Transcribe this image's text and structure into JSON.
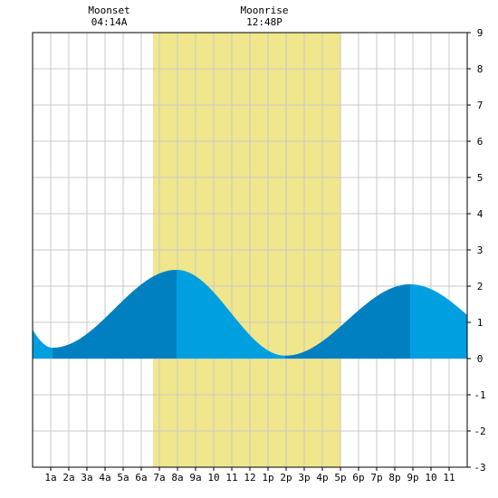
{
  "chart_data": {
    "type": "area",
    "x_unit": "hour",
    "x_range": [
      0,
      24
    ],
    "ylim": [
      -3,
      9
    ],
    "yticks": [
      -3,
      -2,
      -1,
      0,
      1,
      2,
      3,
      4,
      5,
      6,
      7,
      8,
      9
    ],
    "xticks": [
      {
        "h": 1,
        "label": "1a"
      },
      {
        "h": 2,
        "label": "2a"
      },
      {
        "h": 3,
        "label": "3a"
      },
      {
        "h": 4,
        "label": "4a"
      },
      {
        "h": 5,
        "label": "5a"
      },
      {
        "h": 6,
        "label": "6a"
      },
      {
        "h": 7,
        "label": "7a"
      },
      {
        "h": 8,
        "label": "8a"
      },
      {
        "h": 9,
        "label": "9a"
      },
      {
        "h": 10,
        "label": "10"
      },
      {
        "h": 11,
        "label": "11"
      },
      {
        "h": 12,
        "label": "12"
      },
      {
        "h": 13,
        "label": "1p"
      },
      {
        "h": 14,
        "label": "2p"
      },
      {
        "h": 15,
        "label": "3p"
      },
      {
        "h": 16,
        "label": "4p"
      },
      {
        "h": 17,
        "label": "5p"
      },
      {
        "h": 18,
        "label": "6p"
      },
      {
        "h": 19,
        "label": "7p"
      },
      {
        "h": 20,
        "label": "8p"
      },
      {
        "h": 21,
        "label": "9p"
      },
      {
        "h": 22,
        "label": "10"
      },
      {
        "h": 23,
        "label": "11"
      }
    ],
    "daylight": {
      "start_hour": 6.65,
      "end_hour": 17.03
    },
    "annotations": [
      {
        "title": "Moonset",
        "time": "04:14A",
        "hour": 4.23
      },
      {
        "title": "Moonrise",
        "time": "12:48P",
        "hour": 12.8
      }
    ],
    "tide_extremes": [
      {
        "hour": -2.2,
        "height": 2.3
      },
      {
        "hour": 1.1,
        "height": 0.3
      },
      {
        "hour": 7.95,
        "height": 2.45
      },
      {
        "hour": 13.95,
        "height": 0.08
      },
      {
        "hour": 20.85,
        "height": 2.05
      },
      {
        "hour": 27.5,
        "height": 0.2
      }
    ],
    "grid": true
  },
  "colors": {
    "daylight": "#f0e68c",
    "rising_fill": "#0080c0",
    "falling_fill": "#00a0e0",
    "grid": "#c8c8c8",
    "axis": "#000000"
  }
}
